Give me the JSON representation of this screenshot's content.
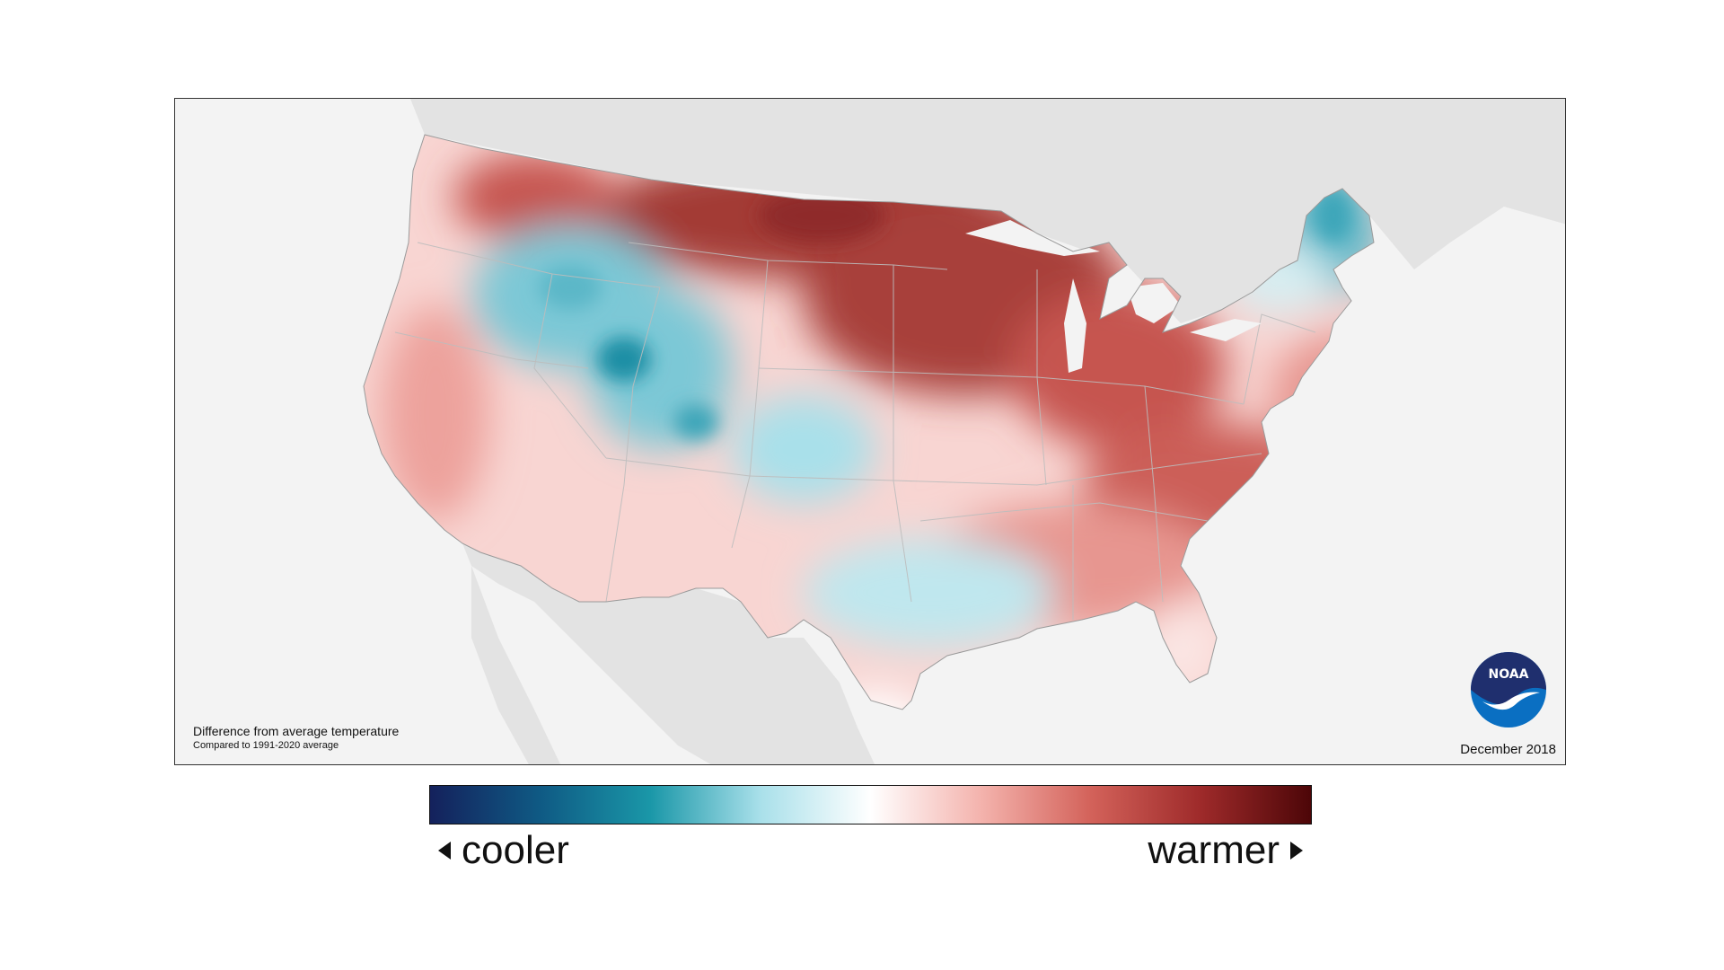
{
  "map": {
    "caption_title": "Difference from average temperature",
    "caption_subtitle": "Compared to 1991-2020 average",
    "date": "December 2018",
    "logo_text": "NOAA"
  },
  "legend": {
    "low_label": "cooler",
    "high_label": "warmer",
    "colors": [
      "#14215c",
      "#0f5a84",
      "#1a97a8",
      "#a9e0ea",
      "#ffffff",
      "#f4b3ad",
      "#d3625a",
      "#9e2a2a",
      "#4d0608"
    ]
  },
  "colors": {
    "land_background": "#e3e3e3",
    "ocean": "#f3f3f3",
    "warm_strong": "#a33a36",
    "warm_mid": "#e79690",
    "warm_light": "#f8d5d2",
    "cool_mid": "#7cc8d6",
    "cool_strong": "#1f8fa5"
  }
}
